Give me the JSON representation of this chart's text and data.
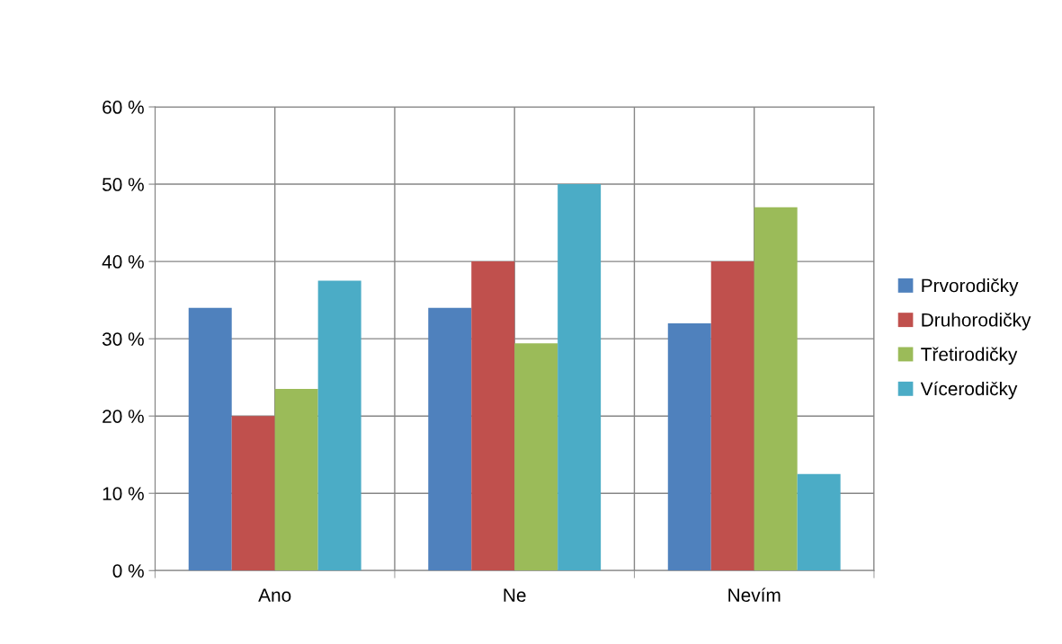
{
  "chart_data": {
    "type": "bar",
    "categories": [
      "Ano",
      "Ne",
      "Nevím"
    ],
    "series": [
      {
        "name": "Prvorodičky",
        "color": "#4f81bd",
        "values": [
          34,
          34,
          32
        ]
      },
      {
        "name": "Druhorodičky",
        "color": "#c0504d",
        "values": [
          20,
          40,
          40
        ]
      },
      {
        "name": "Třetirodičky",
        "color": "#9bbb59",
        "values": [
          23.5,
          29.4,
          47
        ]
      },
      {
        "name": "Vícerodičky",
        "color": "#4bacc6",
        "values": [
          37.5,
          50,
          12.5
        ]
      }
    ],
    "ylim": [
      0,
      60
    ],
    "yticks": [
      {
        "value": 0,
        "label": "0 %"
      },
      {
        "value": 10,
        "label": "10 %"
      },
      {
        "value": 20,
        "label": "20 %"
      },
      {
        "value": 30,
        "label": "30 %"
      },
      {
        "value": 40,
        "label": "40 %"
      },
      {
        "value": 50,
        "label": "50 %"
      },
      {
        "value": 60,
        "label": "60 %"
      }
    ],
    "grid": true,
    "legend": "right"
  }
}
